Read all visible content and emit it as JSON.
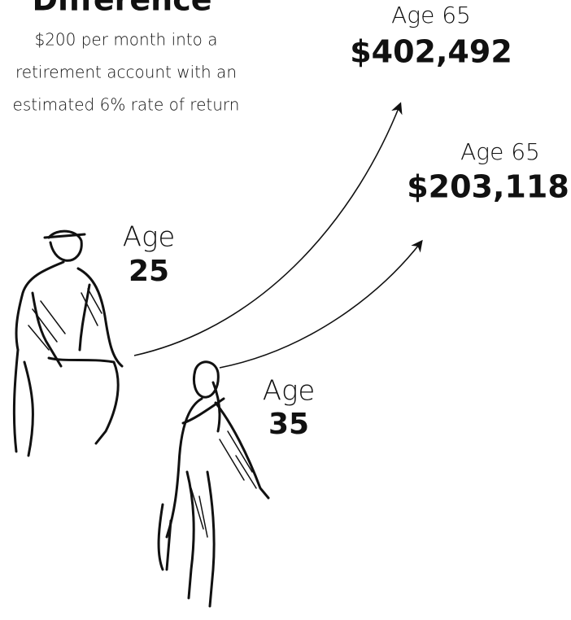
{
  "header": {
    "title": "Difference",
    "subtitle": [
      "$200 per month into a",
      "retirement account with an",
      "estimated 6% rate of return"
    ]
  },
  "people": [
    {
      "label": "Age",
      "age": "25",
      "result_label": "Age 65",
      "result": "$402,492"
    },
    {
      "label": "Age",
      "age": "35",
      "result_label": "Age 65",
      "result": "$203,118"
    }
  ]
}
